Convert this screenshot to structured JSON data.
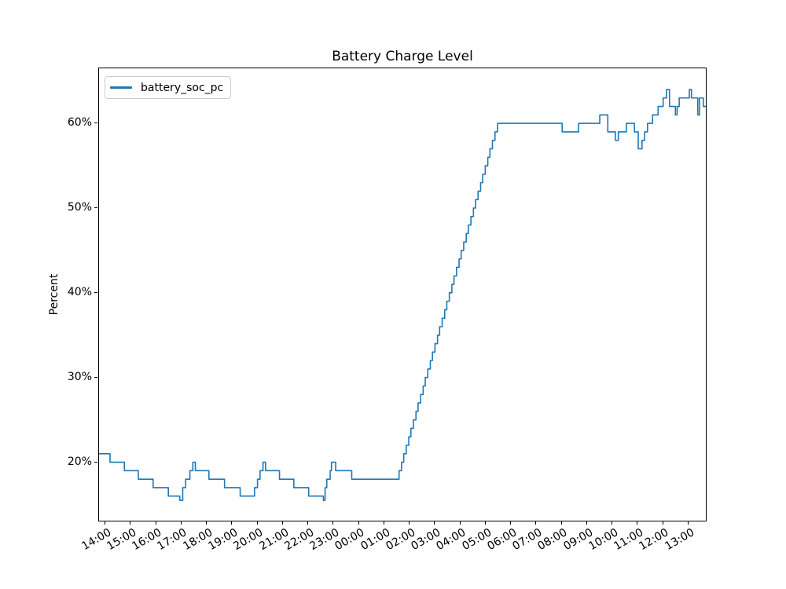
{
  "figure": {
    "background": "#ffffff",
    "spine_color": "#000000",
    "legend_border_color": "#cccccc"
  },
  "chart_data": {
    "type": "line",
    "title": "Battery Charge Level",
    "xlabel": "",
    "ylabel": "Percent",
    "line_color": "#1f77b4",
    "line_style": "steps-post",
    "grid": false,
    "legend": {
      "position": "upper left",
      "entries": [
        "battery_soc_pc"
      ]
    },
    "x_ticks": [
      "14:00",
      "15:00",
      "16:00",
      "17:00",
      "18:00",
      "19:00",
      "20:00",
      "21:00",
      "22:00",
      "23:00",
      "00:00",
      "01:00",
      "02:00",
      "03:00",
      "04:00",
      "05:00",
      "06:00",
      "07:00",
      "08:00",
      "09:00",
      "10:00",
      "11:00",
      "12:00",
      "13:00"
    ],
    "x_tick_first_hour": 14,
    "y_ticks": [
      "20%",
      "30%",
      "40%",
      "50%",
      "60%"
    ],
    "y_tick_values": [
      20,
      30,
      40,
      50,
      60
    ],
    "x_range_hours": [
      13.75,
      37.683
    ],
    "y_range": [
      13.1,
      66.5
    ],
    "points_format": "[time HH:MM (rolls over midnight), battery percent]",
    "series": [
      {
        "name": "battery_soc_pc",
        "color": "#1f77b4",
        "points": [
          [
            "13:45",
            21
          ],
          [
            "14:11",
            20
          ],
          [
            "14:45",
            19
          ],
          [
            "15:18",
            18
          ],
          [
            "15:53",
            17
          ],
          [
            "16:29",
            16
          ],
          [
            "16:56",
            15.5
          ],
          [
            "17:03",
            17
          ],
          [
            "17:10",
            18
          ],
          [
            "17:20",
            19
          ],
          [
            "17:27",
            20
          ],
          [
            "17:33",
            19
          ],
          [
            "18:05",
            18
          ],
          [
            "18:42",
            17
          ],
          [
            "19:19",
            16
          ],
          [
            "19:53",
            17
          ],
          [
            "20:00",
            18
          ],
          [
            "20:06",
            19
          ],
          [
            "20:13",
            20
          ],
          [
            "20:19",
            19
          ],
          [
            "20:52",
            18
          ],
          [
            "21:26",
            17
          ],
          [
            "22:01",
            16
          ],
          [
            "22:36",
            15.5
          ],
          [
            "22:40",
            17
          ],
          [
            "22:44",
            18
          ],
          [
            "22:52",
            19
          ],
          [
            "22:55",
            20
          ],
          [
            "23:05",
            19
          ],
          [
            "23:43",
            18
          ],
          [
            "01:35",
            19
          ],
          [
            "01:41",
            20
          ],
          [
            "01:46",
            21
          ],
          [
            "01:52",
            22
          ],
          [
            "01:58",
            23
          ],
          [
            "02:03",
            24
          ],
          [
            "02:09",
            25
          ],
          [
            "02:15",
            26
          ],
          [
            "02:20",
            27
          ],
          [
            "02:26",
            28
          ],
          [
            "02:32",
            29
          ],
          [
            "02:37",
            30
          ],
          [
            "02:43",
            31
          ],
          [
            "02:49",
            32
          ],
          [
            "02:54",
            33
          ],
          [
            "03:00",
            34
          ],
          [
            "03:06",
            35
          ],
          [
            "03:11",
            36
          ],
          [
            "03:17",
            37
          ],
          [
            "03:23",
            38
          ],
          [
            "03:28",
            39
          ],
          [
            "03:34",
            40
          ],
          [
            "03:40",
            41
          ],
          [
            "03:45",
            42
          ],
          [
            "03:51",
            43
          ],
          [
            "03:57",
            44
          ],
          [
            "04:02",
            45
          ],
          [
            "04:08",
            46
          ],
          [
            "04:14",
            47
          ],
          [
            "04:19",
            48
          ],
          [
            "04:25",
            49
          ],
          [
            "04:31",
            50
          ],
          [
            "04:36",
            51
          ],
          [
            "04:42",
            52
          ],
          [
            "04:48",
            53
          ],
          [
            "04:53",
            54
          ],
          [
            "04:59",
            55
          ],
          [
            "05:05",
            56
          ],
          [
            "05:10",
            57
          ],
          [
            "05:16",
            58
          ],
          [
            "05:22",
            59
          ],
          [
            "05:28",
            60
          ],
          [
            "08:01",
            59
          ],
          [
            "08:40",
            60
          ],
          [
            "09:30",
            61
          ],
          [
            "09:49",
            59
          ],
          [
            "10:07",
            58
          ],
          [
            "10:14",
            59
          ],
          [
            "10:33",
            60
          ],
          [
            "10:52",
            59
          ],
          [
            "11:01",
            57
          ],
          [
            "11:10",
            58
          ],
          [
            "11:16",
            59
          ],
          [
            "11:23",
            60
          ],
          [
            "11:35",
            61
          ],
          [
            "11:48",
            62
          ],
          [
            "12:00",
            63
          ],
          [
            "12:08",
            64
          ],
          [
            "12:15",
            62
          ],
          [
            "12:29",
            61
          ],
          [
            "12:33",
            62
          ],
          [
            "12:38",
            63
          ],
          [
            "13:02",
            64
          ],
          [
            "13:07",
            63
          ],
          [
            "13:22",
            61
          ],
          [
            "13:26",
            63
          ],
          [
            "13:35",
            62
          ],
          [
            "13:41",
            62
          ]
        ]
      }
    ]
  }
}
